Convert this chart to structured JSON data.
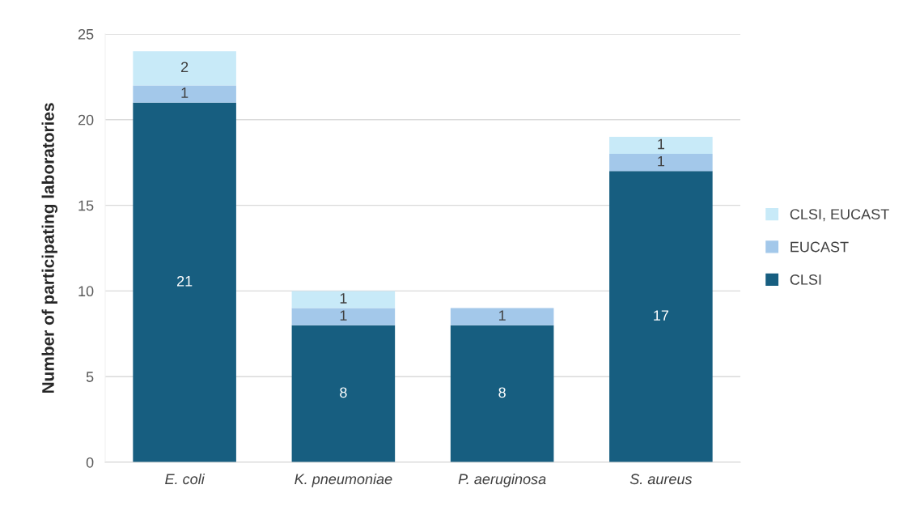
{
  "chart_data": {
    "type": "bar",
    "stacked": true,
    "ylabel": "Number of participating laboratories",
    "categories": [
      "E. coli",
      "K. pneumoniae",
      "P. aeruginosa",
      "S. aureus"
    ],
    "series": [
      {
        "name": "CLSI",
        "color": "#175e80",
        "values": [
          21,
          8,
          8,
          17
        ]
      },
      {
        "name": "EUCAST",
        "color": "#a3c8ea",
        "values": [
          1,
          1,
          1,
          1
        ]
      },
      {
        "name": "CLSI, EUCAST",
        "color": "#c8eaf8",
        "values": [
          2,
          1,
          null,
          1
        ]
      }
    ],
    "ylim": [
      0,
      25
    ],
    "yticks": [
      0,
      5,
      10,
      15,
      20,
      25
    ],
    "grid": "y",
    "legend": "right",
    "data_labels": true
  }
}
